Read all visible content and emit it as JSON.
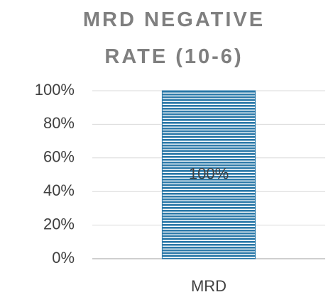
{
  "chart_data": {
    "type": "bar",
    "title": "MRD NEGATIVE RATE (10-6)",
    "categories": [
      "MRD"
    ],
    "values": [
      100
    ],
    "value_labels": [
      "100%"
    ],
    "color": "#2a78a8",
    "ylim": [
      0,
      100
    ],
    "yticks": [
      {
        "value": 0,
        "label": "0%"
      },
      {
        "value": 20,
        "label": "20%"
      },
      {
        "value": 40,
        "label": "40%"
      },
      {
        "value": 60,
        "label": "60%"
      },
      {
        "value": 80,
        "label": "80%"
      },
      {
        "value": 100,
        "label": "100%"
      }
    ],
    "grid": true
  }
}
